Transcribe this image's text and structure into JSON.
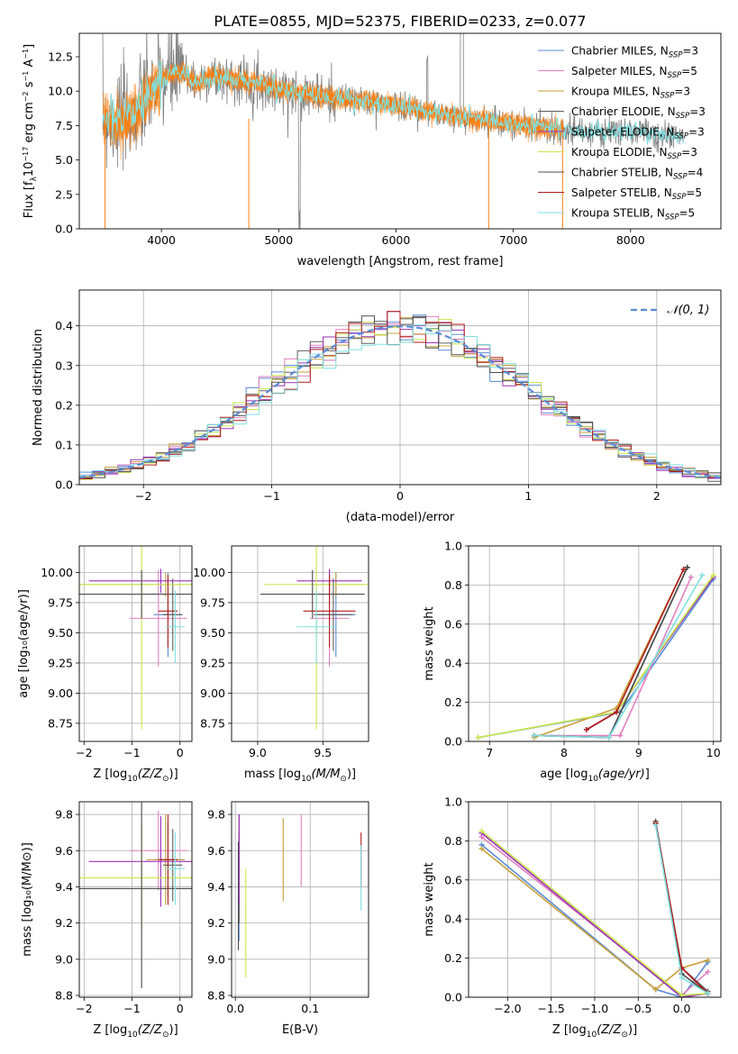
{
  "figure": {
    "title": "PLATE=0855, MJD=52375, FIBERID=0233, z=0.077"
  },
  "model_colors": [
    "#5b8bd6",
    "#e27fbf",
    "#c8a03a",
    "#5f5f5f",
    "#9b30b8",
    "#c8e84a",
    "#4d4d4d",
    "#b01b1b",
    "#7fe0e0"
  ],
  "chart_data": [
    {
      "id": "spectrum",
      "type": "line",
      "title": "PLATE=0855, MJD=52375, FIBERID=0233, z=0.077",
      "xlabel": "wavelength [Angstrom, rest frame]",
      "ylabel": "Flux [f_λ10^{-17} erg cm^{-2} s^{-1} A^{-1}]",
      "xlim": [
        3300,
        8770
      ],
      "ylim": [
        0,
        14.2
      ],
      "xticks": [
        4000,
        5000,
        6000,
        7000,
        8000
      ],
      "yticks": [
        0.0,
        2.5,
        5.0,
        7.5,
        10.0,
        12.5
      ],
      "grid": false,
      "legend_position": "top-right",
      "legend": [
        {
          "label": "Chabrier MILES, N",
          "sub": "SSP",
          "suffix": "=3"
        },
        {
          "label": "Salpeter MILES, N",
          "sub": "SSP",
          "suffix": "=5"
        },
        {
          "label": "Kroupa MILES, N",
          "sub": "SSP",
          "suffix": "=3"
        },
        {
          "label": "Chabrier ELODIE, N",
          "sub": "SSP",
          "suffix": "=3"
        },
        {
          "label": "Salpeter ELODIE, N",
          "sub": "SSP",
          "suffix": "=3"
        },
        {
          "label": "Kroupa ELODIE, N",
          "sub": "SSP",
          "suffix": "=3"
        },
        {
          "label": "Chabrier STELIB, N",
          "sub": "SSP",
          "suffix": "=4"
        },
        {
          "label": "Salpeter STELIB, N",
          "sub": "SSP",
          "suffix": "=5"
        },
        {
          "label": "Kroupa STELIB, N",
          "sub": "SSP",
          "suffix": "=5"
        }
      ],
      "data_color": "#808080",
      "model_line_color": "#ff7f0e",
      "continuum": {
        "wavelength": [
          3500,
          3600,
          3700,
          3800,
          3900,
          4000,
          4100,
          4200,
          4300,
          4400,
          4500,
          4600,
          4700,
          4800,
          4900,
          5000,
          5200,
          5400,
          5600,
          5800,
          6000,
          6200,
          6400,
          6600,
          6800,
          7000,
          7200,
          7400,
          7600,
          7800,
          8000,
          8200,
          8400
        ],
        "flux": [
          8.2,
          7.8,
          8.0,
          8.5,
          9.8,
          10.8,
          11.3,
          11.3,
          10.5,
          11.0,
          11.0,
          10.9,
          10.7,
          10.6,
          10.4,
          10.1,
          9.9,
          9.6,
          9.4,
          9.2,
          9.0,
          8.6,
          8.3,
          8.0,
          7.9,
          7.6,
          7.4,
          7.2,
          7.0,
          7.0,
          7.1,
          6.9,
          6.7
        ]
      }
    },
    {
      "id": "residuals",
      "type": "histogram",
      "xlabel": "(data-model)/error",
      "ylabel": "Normed distribution",
      "xlim": [
        -2.5,
        2.5
      ],
      "ylim": [
        0,
        0.49
      ],
      "xticks": [
        -2,
        -1,
        0,
        1,
        2
      ],
      "yticks": [
        0.0,
        0.1,
        0.2,
        0.3,
        0.4
      ],
      "grid": true,
      "legend_position": "top-right",
      "reference_label": "𝒩(0, 1)",
      "reference_color": "#5b8bd6",
      "bin_width": 0.1
    },
    {
      "id": "age-vs-Z",
      "type": "scatter",
      "xlabel": "Z [log",
      "xlabel_sub": "10",
      "xlabel_math": "(Z/Z",
      "xlabel_math_sub": "⊙",
      "xlabel_end": ")]",
      "ylabel": "age  [log₁₀(age/yr)]",
      "xlim": [
        -2.1,
        0.25
      ],
      "ylim": [
        8.6,
        10.22
      ],
      "xticks": [
        -2,
        -1,
        0
      ],
      "yticks": [
        8.75,
        9.0,
        9.25,
        9.5,
        9.75,
        10.0
      ],
      "grid": true,
      "points": [
        {
          "x": -0.25,
          "y": 9.65,
          "xerr": 0.3,
          "yerr": 0.35
        },
        {
          "x": -0.45,
          "y": 9.62,
          "xerr": 0.6,
          "yerr": 0.4
        },
        {
          "x": -0.3,
          "y": 9.9,
          "xerr": 2.0,
          "yerr": 0.1
        },
        {
          "x": -0.15,
          "y": 9.65,
          "xerr": 0.2,
          "yerr": 0.3
        },
        {
          "x": -0.4,
          "y": 9.93,
          "xerr": 1.5,
          "yerr": 0.1
        },
        {
          "x": -0.8,
          "y": 9.9,
          "xerr": 1.4,
          "yerr": 1.2
        },
        {
          "x": -0.8,
          "y": 9.82,
          "xerr": 1.4,
          "yerr": 0.2
        },
        {
          "x": -0.25,
          "y": 9.68,
          "xerr": 0.2,
          "yerr": 0.3
        },
        {
          "x": -0.1,
          "y": 9.55,
          "xerr": 0.2,
          "yerr": 0.3
        }
      ]
    },
    {
      "id": "age-vs-mass",
      "type": "scatter",
      "xlabel": "mass [log",
      "xlabel_sub": "10",
      "xlabel_math": "(M/M",
      "xlabel_math_sub": "⊙",
      "xlabel_end": ")]",
      "ylabel": "",
      "xlim": [
        8.8,
        9.85
      ],
      "ylim": [
        8.6,
        10.22
      ],
      "xticks": [
        9.0,
        9.5
      ],
      "yticks": [
        8.75,
        9.0,
        9.25,
        9.5,
        9.75,
        10.0
      ],
      "grid": true,
      "points": [
        {
          "x": 9.6,
          "y": 9.65,
          "xerr": 0.15,
          "yerr": 0.35
        },
        {
          "x": 9.55,
          "y": 9.62,
          "xerr": 0.15,
          "yerr": 0.4
        },
        {
          "x": 9.6,
          "y": 9.9,
          "xerr": 0.2,
          "yerr": 0.1
        },
        {
          "x": 9.58,
          "y": 9.65,
          "xerr": 0.15,
          "yerr": 0.3
        },
        {
          "x": 9.55,
          "y": 9.93,
          "xerr": 0.25,
          "yerr": 0.1
        },
        {
          "x": 9.45,
          "y": 9.9,
          "xerr": 0.4,
          "yerr": 1.2
        },
        {
          "x": 9.42,
          "y": 9.82,
          "xerr": 0.4,
          "yerr": 0.2
        },
        {
          "x": 9.55,
          "y": 9.68,
          "xerr": 0.2,
          "yerr": 0.3
        },
        {
          "x": 9.45,
          "y": 9.55,
          "xerr": 0.15,
          "yerr": 0.3
        }
      ]
    },
    {
      "id": "mass-weight-vs-age",
      "type": "line",
      "xlabel": "age  [log",
      "xlabel_sub": "10",
      "xlabel_math": "(age/yr)",
      "xlabel_end": "]",
      "ylabel": "mass weight",
      "xlim": [
        6.72,
        10.1
      ],
      "ylim": [
        0,
        1.0
      ],
      "xticks": [
        7,
        8,
        9,
        10
      ],
      "yticks": [
        0.0,
        0.2,
        0.4,
        0.6,
        0.8,
        1.0
      ],
      "grid": true,
      "series": [
        {
          "x": [
            6.85,
            8.75,
            10.0
          ],
          "y": [
            0.02,
            0.15,
            0.83
          ]
        },
        {
          "x": [
            7.6,
            8.75,
            9.7
          ],
          "y": [
            0.03,
            0.03,
            0.84
          ]
        },
        {
          "x": [
            7.6,
            8.7,
            9.6
          ],
          "y": [
            0.02,
            0.17,
            0.88
          ]
        },
        {
          "x": [
            7.6,
            8.6,
            9.65
          ],
          "y": [
            0.03,
            0.02,
            0.89
          ]
        },
        {
          "x": [
            8.3,
            8.7,
            10.0
          ],
          "y": [
            0.06,
            0.15,
            0.84
          ]
        },
        {
          "x": [
            6.85,
            8.7,
            10.0
          ],
          "y": [
            0.02,
            0.15,
            0.85
          ]
        },
        {
          "x": [
            7.6,
            8.6,
            9.65
          ],
          "y": [
            0.03,
            0.02,
            0.89
          ]
        },
        {
          "x": [
            8.3,
            8.7,
            9.6
          ],
          "y": [
            0.06,
            0.15,
            0.88
          ]
        },
        {
          "x": [
            7.6,
            8.6,
            9.85
          ],
          "y": [
            0.03,
            0.02,
            0.85
          ]
        }
      ]
    },
    {
      "id": "mass-vs-Z",
      "type": "scatter",
      "xlabel": "Z [log",
      "xlabel_sub": "10",
      "xlabel_math": "(Z/Z",
      "xlabel_math_sub": "⊙",
      "xlabel_end": ")]",
      "ylabel": "mass [log₁₀(M/M⊙)]",
      "xlim": [
        -2.1,
        0.25
      ],
      "ylim": [
        8.79,
        9.87
      ],
      "xticks": [
        -2,
        -1,
        0
      ],
      "yticks": [
        8.8,
        9.0,
        9.2,
        9.4,
        9.6,
        9.8
      ],
      "grid": true,
      "points": [
        {
          "x": -0.25,
          "y": 9.55,
          "xerr": 0.3,
          "yerr": 0.2
        },
        {
          "x": -0.45,
          "y": 9.6,
          "xerr": 0.6,
          "yerr": 0.22
        },
        {
          "x": -0.3,
          "y": 9.55,
          "xerr": 0.4,
          "yerr": 0.25
        },
        {
          "x": -0.15,
          "y": 9.52,
          "xerr": 0.2,
          "yerr": 0.2
        },
        {
          "x": -0.4,
          "y": 9.54,
          "xerr": 1.5,
          "yerr": 0.25
        },
        {
          "x": -0.8,
          "y": 9.45,
          "xerr": 1.4,
          "yerr": 0.3
        },
        {
          "x": -0.8,
          "y": 9.39,
          "xerr": 1.4,
          "yerr": 0.55
        },
        {
          "x": -0.25,
          "y": 9.55,
          "xerr": 0.2,
          "yerr": 0.25
        },
        {
          "x": -0.1,
          "y": 9.5,
          "xerr": 0.2,
          "yerr": 0.2
        }
      ]
    },
    {
      "id": "mass-vs-EBV",
      "type": "scatter",
      "xlabel": "E(B-V)",
      "ylabel": "",
      "xlim": [
        -0.005,
        0.178
      ],
      "ylim": [
        8.79,
        9.87
      ],
      "xticks": [
        0.0,
        0.1
      ],
      "yticks": [
        8.8,
        9.0,
        9.2,
        9.4,
        9.6,
        9.8
      ],
      "grid": true,
      "points": [
        {
          "x": 0.005,
          "y": 9.4,
          "yerr": 0.3
        },
        {
          "x": 0.088,
          "y": 9.6,
          "yerr": 0.2
        },
        {
          "x": 0.064,
          "y": 9.55,
          "yerr": 0.23
        },
        {
          "x": 0.005,
          "y": 9.5,
          "yerr": 0.3
        },
        {
          "x": 0.005,
          "y": 9.55,
          "yerr": 0.25
        },
        {
          "x": 0.014,
          "y": 9.2,
          "yerr": 0.3
        },
        {
          "x": 0.004,
          "y": 9.35,
          "yerr": 0.3
        },
        {
          "x": 0.168,
          "y": 9.55,
          "yerr": 0.15
        },
        {
          "x": 0.168,
          "y": 9.45,
          "yerr": 0.18
        }
      ]
    },
    {
      "id": "mass-weight-vs-Z",
      "type": "line",
      "xlabel": "Z [log",
      "xlabel_sub": "10",
      "xlabel_math": "(Z/Z",
      "xlabel_math_sub": "⊙",
      "xlabel_end": ")]",
      "ylabel": "mass weight",
      "xlim": [
        -2.45,
        0.45
      ],
      "ylim": [
        0,
        1.0
      ],
      "xticks": [
        -2.0,
        -1.5,
        -1.0,
        -0.5,
        0.0
      ],
      "yticks": [
        0.0,
        0.2,
        0.4,
        0.6,
        0.8,
        1.0
      ],
      "grid": true,
      "series": [
        {
          "x": [
            -2.3,
            -0.3,
            0.0,
            0.3
          ],
          "y": [
            0.78,
            0.04,
            0.0,
            0.18
          ]
        },
        {
          "x": [
            -2.3,
            0.0,
            0.3
          ],
          "y": [
            0.82,
            0.01,
            0.13
          ]
        },
        {
          "x": [
            -2.3,
            -0.3,
            0.0,
            0.3
          ],
          "y": [
            0.76,
            0.04,
            0.15,
            0.19
          ]
        },
        {
          "x": [
            -0.3,
            0.0,
            0.3
          ],
          "y": [
            0.89,
            0.15,
            0.03
          ]
        },
        {
          "x": [
            -2.3,
            0.0,
            0.3
          ],
          "y": [
            0.84,
            0.0,
            0.02
          ]
        },
        {
          "x": [
            -2.3,
            0.0,
            0.3
          ],
          "y": [
            0.85,
            0.01,
            0.02
          ]
        },
        {
          "x": [
            -0.3,
            0.0,
            0.3
          ],
          "y": [
            0.9,
            0.12,
            0.02
          ]
        },
        {
          "x": [
            -0.3,
            0.0,
            0.3
          ],
          "y": [
            0.89,
            0.15,
            0.02
          ]
        },
        {
          "x": [
            -0.3,
            0.0,
            0.3
          ],
          "y": [
            0.88,
            0.1,
            0.02
          ]
        }
      ]
    }
  ]
}
